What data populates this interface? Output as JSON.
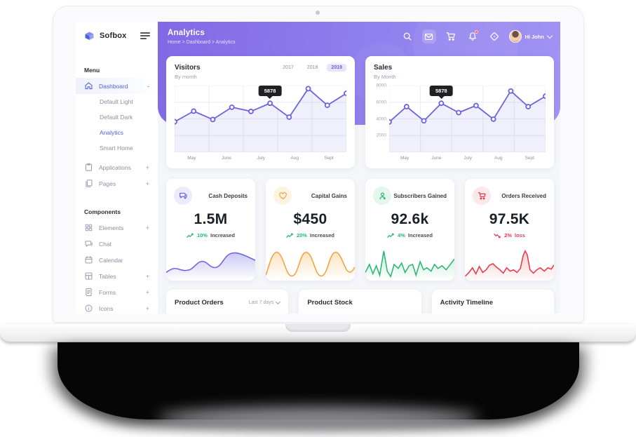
{
  "colors": {
    "primary": "#4f63dd",
    "chart_line": "#6c63e0",
    "chart_fill": "rgba(108,99,224,0.10)",
    "grid": "#ececf3",
    "banner_from": "#8169e6",
    "banner_to": "#a294f4",
    "green": "#2bb673",
    "red": "#e8394a",
    "orange": "#f7a239",
    "tooltip_bg": "#1f1f24"
  },
  "brand": {
    "name": "Sofbox"
  },
  "header": {
    "title": "Analytics",
    "breadcrumb": "Home > Dashboard > Analytics",
    "greeting": "Hi John"
  },
  "sidebar": {
    "menu_label": "Menu",
    "components_label": "Components",
    "items": [
      {
        "label": "Dashboard",
        "suffix": "-"
      },
      {
        "label": "Default Light"
      },
      {
        "label": "Default Dark"
      },
      {
        "label": "Analytics"
      },
      {
        "label": "Smart Home"
      },
      {
        "label": "Applications",
        "suffix": "+"
      },
      {
        "label": "Pages",
        "suffix": "+"
      }
    ],
    "component_items": [
      {
        "label": "Elements",
        "suffix": "+"
      },
      {
        "label": "Chat"
      },
      {
        "label": "Calendar"
      },
      {
        "label": "Tables",
        "suffix": "+"
      },
      {
        "label": "Forms",
        "suffix": "+"
      },
      {
        "label": "Icons",
        "suffix": "+"
      },
      {
        "label": "Widgets",
        "suffix": "+"
      }
    ]
  },
  "visitors": {
    "title": "Visitors",
    "subtitle": "By month",
    "years": [
      "2017",
      "2018",
      "2019"
    ],
    "active_year": "2019"
  },
  "sales": {
    "title": "Sales",
    "subtitle": "By Month"
  },
  "chart_data": [
    {
      "type": "line",
      "title": "Visitors",
      "subtitle": "By month",
      "x_labels": [
        "May",
        "June",
        "July",
        "Aug",
        "Sept"
      ],
      "values": [
        3650,
        4930,
        3930,
        5400,
        4900,
        5878,
        4210,
        7630,
        5630,
        7070
      ],
      "ylim": [
        0,
        8000
      ],
      "y_ticks": [],
      "tooltip": {
        "index": 5,
        "label": "5878"
      },
      "legend": "none",
      "grid": true
    },
    {
      "type": "line",
      "title": "Sales",
      "subtitle": "By Month",
      "x_labels": [
        "May",
        "June",
        "July",
        "Aug",
        "Sept"
      ],
      "values": [
        3630,
        5470,
        3770,
        5878,
        4760,
        5600,
        3970,
        7350,
        5470,
        6730
      ],
      "ylim": [
        0,
        8000
      ],
      "y_ticks": [
        "8000",
        "6000",
        "4000",
        "2000"
      ],
      "tooltip": {
        "index": 3,
        "label": "5878"
      },
      "legend": "none",
      "grid": true
    }
  ],
  "stats": [
    {
      "title": "Cash Deposits",
      "value": "1.5M",
      "pct": "10%",
      "text": "Increased",
      "direction": "up"
    },
    {
      "title": "Capital Gains",
      "value": "$450",
      "pct": "20%",
      "text": "Increased",
      "direction": "up"
    },
    {
      "title": "Subscribers Gained",
      "value": "92.6k",
      "pct": "4%",
      "text": "Increased",
      "direction": "up"
    },
    {
      "title": "Orders Received",
      "value": "97.5K",
      "pct": "2%",
      "text": "loss",
      "direction": "down"
    }
  ],
  "bottom_cards": [
    {
      "title": "Product Orders",
      "filter": "Last 7 days"
    },
    {
      "title": "Product Stock"
    },
    {
      "title": "Activity Timeline"
    }
  ]
}
